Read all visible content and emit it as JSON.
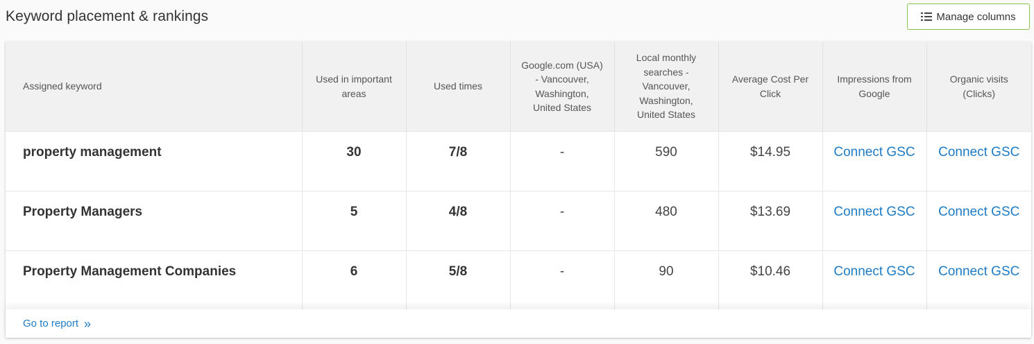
{
  "header": {
    "title": "Keyword placement & rankings",
    "manage_columns_label": "Manage columns",
    "manage_columns_icon": "columns-list-icon"
  },
  "table": {
    "columns": [
      "Assigned keyword",
      "Used in important areas",
      "Used times",
      "Google.com (USA) - Vancouver, Washington, United States",
      "Local monthly searches - Vancouver, Washington, United States",
      "Average Cost Per Click",
      "Impressions from Google",
      "Organic visits (Clicks)"
    ],
    "rows": [
      {
        "keyword": "property management",
        "important_areas": "30",
        "used_times": "7/8",
        "google_rank": "-",
        "monthly_searches": "590",
        "cpc": "$14.95",
        "impressions": "Connect GSC",
        "organic_visits": "Connect GSC"
      },
      {
        "keyword": "Property Managers",
        "important_areas": "5",
        "used_times": "4/8",
        "google_rank": "-",
        "monthly_searches": "480",
        "cpc": "$13.69",
        "impressions": "Connect GSC",
        "organic_visits": "Connect GSC"
      },
      {
        "keyword": "Property Management Companies",
        "important_areas": "6",
        "used_times": "5/8",
        "google_rank": "-",
        "monthly_searches": "90",
        "cpc": "$10.46",
        "impressions": "Connect GSC",
        "organic_visits": "Connect GSC"
      }
    ]
  },
  "footer": {
    "report_link": "Go to report",
    "report_icon": "double-chevron-right-icon"
  },
  "colors": {
    "link": "#1e7bc4",
    "button_border": "#8bc34a",
    "header_bg": "#f1f1f1"
  }
}
